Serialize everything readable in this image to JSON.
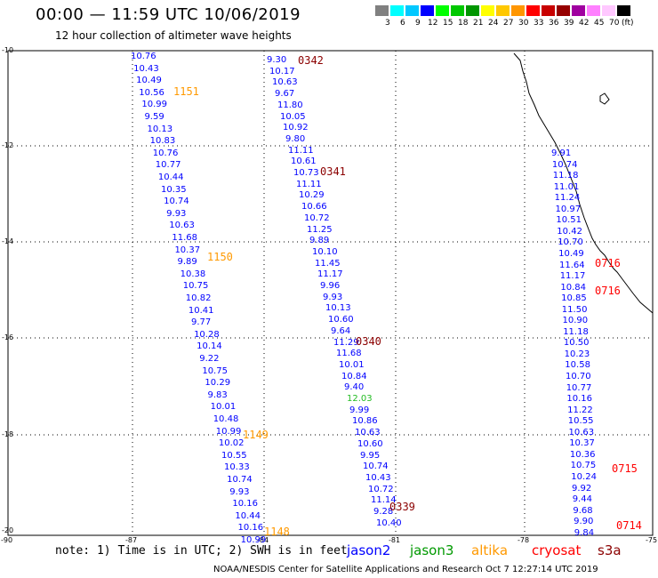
{
  "title": "00:00 — 11:59 UTC 10/06/2019",
  "subtitle": "12 hour collection of altimeter wave heights",
  "colorbar": {
    "unit": "(ft)",
    "ticks": [
      "3",
      "6",
      "9",
      "12",
      "15",
      "18",
      "21",
      "24",
      "27",
      "30",
      "33",
      "36",
      "39",
      "42",
      "45",
      "70"
    ],
    "colors": [
      "#808080",
      "#00ffff",
      "#00c8ff",
      "#0000ff",
      "#00ff00",
      "#00c800",
      "#009600",
      "#ffff00",
      "#ffc800",
      "#ff9600",
      "#ff0000",
      "#c80000",
      "#960000",
      "#a000a0",
      "#ff80ff",
      "#ffc8ff",
      "#000000"
    ]
  },
  "axes": {
    "lat_labels": [
      "-10",
      "-12",
      "-14",
      "-16",
      "-18",
      "-20"
    ],
    "lon_labels": [
      "-90",
      "-87",
      "-84",
      "-81",
      "-78",
      "-75"
    ]
  },
  "tracks": [
    {
      "id": "track-left",
      "color": "#0000ff",
      "points": [
        "10.76",
        "10.43",
        "10.49",
        "10.56",
        "10.99",
        "9.59",
        "10.13",
        "10.83",
        "10.76",
        "10.77",
        "10.44",
        "10.35",
        "10.74",
        "9.93",
        "10.63",
        "11.68",
        "10.37",
        "9.89",
        "10.38",
        "10.75",
        "10.82",
        "10.41",
        "9.77",
        "10.28",
        "10.14",
        "9.22",
        "10.75",
        "10.29",
        "9.83",
        "10.01",
        "10.48",
        "10.99",
        "10.02",
        "10.55",
        "10.33",
        "10.74",
        "9.93",
        "10.16",
        "10.44",
        "10.16",
        "10.99"
      ]
    },
    {
      "id": "track-middle",
      "color": "#0000ff",
      "points": [
        "9.30",
        "10.17",
        "10.63",
        "9.67",
        "11.80",
        "10.05",
        "10.92",
        "9.80",
        "11.11",
        "10.61",
        "10.73",
        "11.11",
        "10.29",
        "10.66",
        "10.72",
        "11.25",
        "9.89",
        "10.10",
        "11.45",
        "11.17",
        "9.96",
        "9.93",
        "10.13",
        "10.60",
        "9.64",
        "11.29",
        "11.68",
        "10.01",
        "10.84",
        "9.40",
        "12.03",
        "9.99",
        "10.86",
        "10.63",
        "10.60",
        "9.95",
        "10.74",
        "10.43",
        "10.72",
        "11.14",
        "9.28",
        "10.40"
      ]
    },
    {
      "id": "track-right",
      "color": "#0000ff",
      "points": [
        "9.91",
        "10.74",
        "11.18",
        "11.01",
        "11.24",
        "10.97",
        "10.51",
        "10.42",
        "10.70",
        "10.49",
        "11.64",
        "11.17",
        "10.84",
        "10.85",
        "11.50",
        "10.90",
        "11.18",
        "10.50",
        "10.23",
        "10.58",
        "10.70",
        "10.77",
        "10.16",
        "11.22",
        "10.55",
        "10.63",
        "10.37",
        "10.36",
        "10.75",
        "10.24",
        "9.92",
        "9.44",
        "9.68",
        "9.90",
        "9.84"
      ]
    }
  ],
  "time_labels": [
    {
      "text": "1151",
      "color": "#ff9900"
    },
    {
      "text": "1150",
      "color": "#ff9900"
    },
    {
      "text": "1149",
      "color": "#ff9900"
    },
    {
      "text": "1148",
      "color": "#ff9900"
    },
    {
      "text": "0342",
      "color": "#8b0000"
    },
    {
      "text": "0341",
      "color": "#8b0000"
    },
    {
      "text": "0340",
      "color": "#8b0000"
    },
    {
      "text": "0339",
      "color": "#8b0000"
    },
    {
      "text": "0716",
      "color": "#ff0000"
    },
    {
      "text": "0716",
      "color": "#ff0000"
    },
    {
      "text": "0715",
      "color": "#ff0000"
    },
    {
      "text": "0714",
      "color": "#ff0000"
    }
  ],
  "note": "note: 1) Time is in UTC; 2) SWH is in feet",
  "satellites": [
    {
      "name": "jason2",
      "color": "#0000ff"
    },
    {
      "name": "jason3",
      "color": "#009900"
    },
    {
      "name": "altika",
      "color": "#ff9900"
    },
    {
      "name": "cryosat",
      "color": "#ff0000"
    },
    {
      "name": "s3a",
      "color": "#8b0000"
    }
  ],
  "credit": "NOAA/NESDIS Center for Satellite Applications and Research   Oct  7 12:27:14 UTC 2019"
}
